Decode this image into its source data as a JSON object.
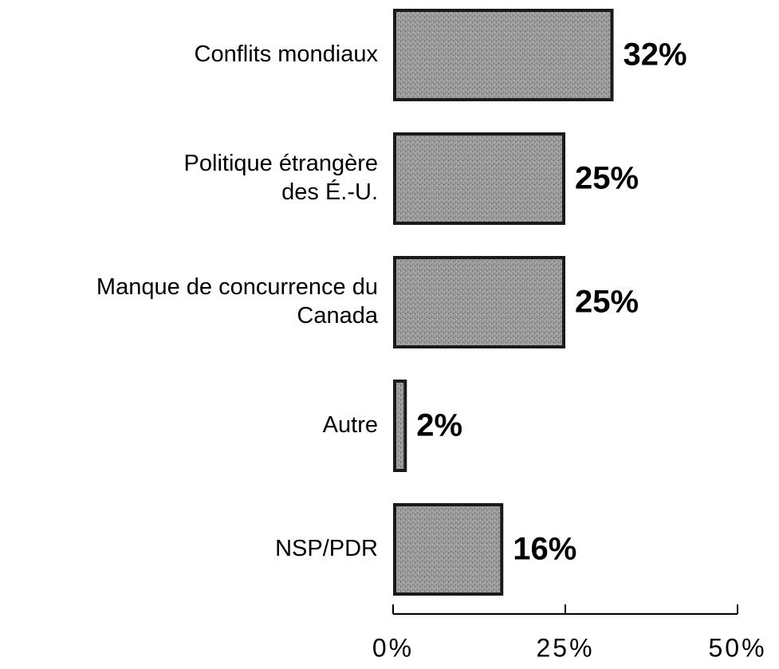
{
  "chart_data": {
    "type": "barh",
    "categories": [
      "Conflits mondiaux",
      "Politique étrangère\ndes É.-U.",
      "Manque de concurrence du\nCanada",
      "Autre",
      "NSP/PDR"
    ],
    "values": [
      32,
      25,
      25,
      2,
      16
    ],
    "value_labels": [
      "32%",
      "25%",
      "25%",
      "2%",
      "16%"
    ],
    "color": "#9a9a9a",
    "xlim": [
      0,
      50
    ],
    "xticks": [
      {
        "value": 0,
        "label": "0%"
      },
      {
        "value": 25,
        "label": "25%"
      },
      {
        "value": 50,
        "label": "50%"
      }
    ],
    "grid": false
  }
}
